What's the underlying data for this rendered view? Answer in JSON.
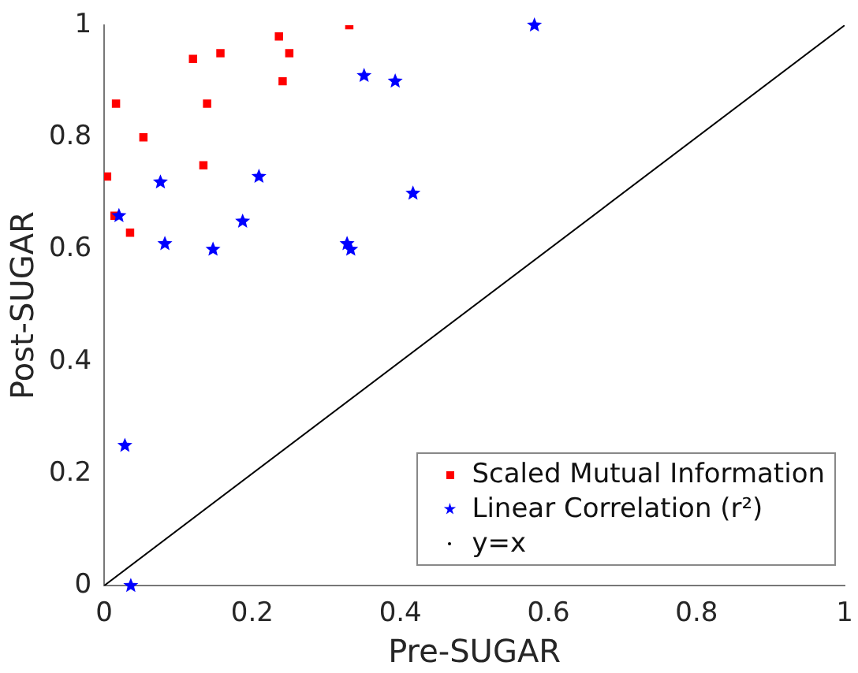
{
  "chart_data": {
    "type": "scatter",
    "xlabel": "Pre-SUGAR",
    "ylabel": "Post-SUGAR",
    "xlim": [
      0,
      1
    ],
    "ylim": [
      0,
      1
    ],
    "xticks": [
      0,
      0.2,
      0.4,
      0.6,
      0.8,
      1
    ],
    "yticks": [
      0,
      0.2,
      0.4,
      0.6,
      0.8,
      1
    ],
    "grid": false,
    "legend": "bottom right",
    "series": [
      {
        "name": "Scaled Mutual Information",
        "color": "#ff0000",
        "marker": "square",
        "x": [
          0.004,
          0.016,
          0.014,
          0.035,
          0.053,
          0.12,
          0.157,
          0.139,
          0.134,
          0.236,
          0.25,
          0.241,
          0.331
        ],
        "values": [
          0.73,
          0.86,
          0.66,
          0.63,
          0.8,
          0.94,
          0.95,
          0.86,
          0.75,
          0.98,
          0.95,
          0.9,
          1.0
        ]
      },
      {
        "name": "Linear Correlation (r²)",
        "color": "#0000ff",
        "marker": "star",
        "x": [
          0.02,
          0.076,
          0.082,
          0.147,
          0.187,
          0.209,
          0.328,
          0.333,
          0.351,
          0.393,
          0.417,
          0.581,
          0.028,
          0.036
        ],
        "values": [
          0.66,
          0.72,
          0.61,
          0.6,
          0.65,
          0.73,
          0.61,
          0.6,
          0.91,
          0.9,
          0.7,
          1.0,
          0.25,
          0.0
        ]
      },
      {
        "name": "y=x",
        "type": "line",
        "color": "#000000",
        "marker": "none",
        "x": [
          0,
          1
        ],
        "values": [
          0,
          1
        ]
      }
    ]
  }
}
